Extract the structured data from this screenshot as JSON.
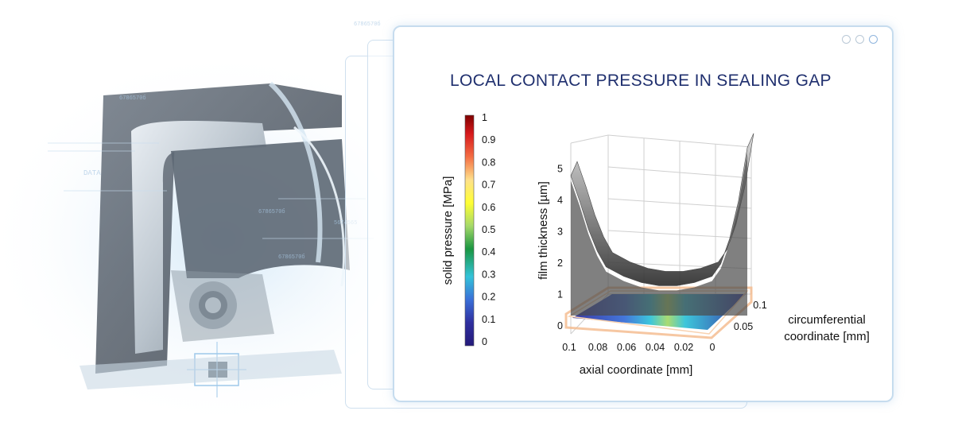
{
  "title": "LOCAL CONTACT PRESSURE IN SEALING GAP",
  "window_controls": [
    "minimize",
    "maximize",
    "close"
  ],
  "colorbar": {
    "label": "solid pressure [MPa]",
    "ticks": [
      "1",
      "0.9",
      "0.8",
      "0.7",
      "0.6",
      "0.5",
      "0.4",
      "0.3",
      "0.2",
      "0.1",
      "0"
    ],
    "colormap": [
      "#7f0000",
      "#d7191c",
      "#f46d43",
      "#fee08b",
      "#ffff33",
      "#a6d96a",
      "#1a9641",
      "#33c3d9",
      "#3a6fd8",
      "#2f2f9f",
      "#241a7a"
    ]
  },
  "chart_data": {
    "type": "surface3d",
    "title": "LOCAL CONTACT PRESSURE IN SEALING GAP",
    "zlabel": "film thickness [µm]",
    "xlabel": "axial coordinate [mm]",
    "ylabel": "circumferential coordinate [mm]",
    "x_ticks": [
      "0.1",
      "0.08",
      "0.06",
      "0.04",
      "0.02",
      "0"
    ],
    "y_ticks": [
      "0.05",
      "0.1"
    ],
    "z_ticks": [
      "0",
      "1",
      "2",
      "3",
      "4",
      "5"
    ],
    "xlim": [
      0,
      0.1
    ],
    "ylim": [
      0,
      0.1
    ],
    "zlim": [
      0,
      5
    ],
    "film_thickness_profile": {
      "axial_mm": [
        0.1,
        0.095,
        0.09,
        0.085,
        0.08,
        0.07,
        0.06,
        0.05,
        0.04,
        0.03,
        0.02,
        0.015,
        0.01,
        0.005,
        0
      ],
      "thickness_um": [
        4.4,
        3.6,
        2.7,
        2.0,
        1.5,
        1.2,
        1.0,
        0.9,
        0.9,
        1.0,
        1.2,
        1.6,
        2.4,
        3.6,
        5.3
      ]
    },
    "color_meaning": "solid pressure [MPa]"
  }
}
